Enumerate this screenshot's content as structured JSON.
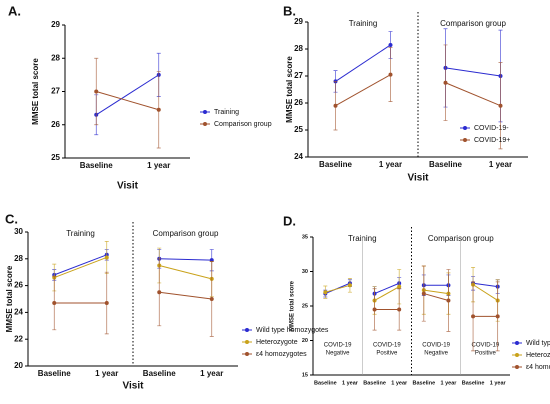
{
  "chart_data": [
    {
      "type": "line",
      "title": "A.",
      "ylabel": "MMSE total score",
      "xlabel": "Visit",
      "categories": [
        "Baseline",
        "1 year"
      ],
      "ylim": [
        25,
        29
      ],
      "yticks": [
        25,
        26,
        27,
        28,
        29
      ],
      "series": [
        {
          "name": "Training",
          "color": "#2b2bd0",
          "values": [
            26.3,
            27.5
          ],
          "errors": [
            0.6,
            0.65
          ]
        },
        {
          "name": "Comparison group",
          "color": "#a0522d",
          "values": [
            27.0,
            26.45
          ],
          "errors": [
            1.0,
            1.15
          ]
        }
      ]
    },
    {
      "type": "line",
      "title": "B.",
      "ylabel": "MMSE total score",
      "xlabel": "Visit",
      "groups": [
        "Training",
        "Comparison group"
      ],
      "categories": [
        "Baseline",
        "1 year",
        "Baseline",
        "1 year"
      ],
      "ylim": [
        24,
        29
      ],
      "yticks": [
        24,
        25,
        26,
        27,
        28,
        29
      ],
      "series": [
        {
          "name": "COVID-19-",
          "color": "#2b2bd0",
          "values": [
            26.8,
            28.15,
            27.3,
            27.0
          ],
          "errors": [
            0.4,
            0.5,
            1.45,
            1.7
          ]
        },
        {
          "name": "COVID-19+",
          "color": "#a0522d",
          "values": [
            25.9,
            27.05,
            26.75,
            25.9
          ],
          "errors": [
            0.9,
            1.0,
            1.4,
            1.6
          ]
        }
      ]
    },
    {
      "type": "line",
      "title": "C.",
      "ylabel": "MMSE total score",
      "xlabel": "Visit",
      "groups": [
        "Training",
        "Comparison group"
      ],
      "categories": [
        "Baseline",
        "1 year",
        "Baseline",
        "1 year"
      ],
      "ylim": [
        20,
        30
      ],
      "yticks": [
        20,
        22,
        24,
        26,
        28,
        30
      ],
      "series": [
        {
          "name": "Wild type homozygotes",
          "color": "#2b2bd0",
          "values": [
            26.8,
            28.3,
            28.0,
            27.9
          ],
          "errors": [
            0.4,
            0.4,
            0.7,
            0.8
          ]
        },
        {
          "name": "Heterozygote",
          "color": "#c9a21a",
          "values": [
            26.6,
            28.1,
            27.5,
            26.5
          ],
          "errors": [
            1.0,
            1.2,
            1.3,
            1.3
          ]
        },
        {
          "name": "ε4 homozygotes",
          "color": "#a0522d",
          "values": [
            24.7,
            24.7,
            25.5,
            25.0
          ],
          "errors": [
            2.0,
            2.3,
            2.5,
            2.8
          ]
        }
      ]
    },
    {
      "type": "line",
      "title": "D.",
      "ylabel": "MMSE total score",
      "groups": [
        "Training",
        "Comparison group"
      ],
      "subgroups": [
        [
          "COVID-19",
          "Negative"
        ],
        [
          "COVID-19",
          "Positive"
        ],
        [
          "COVID-19",
          "Negative"
        ],
        [
          "COVID-19",
          "Positive"
        ]
      ],
      "categories": [
        "Baseline",
        "1 year",
        "Baseline",
        "1 year",
        "Baseline",
        "1 year",
        "Baseline",
        "1 year"
      ],
      "ylim": [
        15,
        35
      ],
      "yticks": [
        15,
        20,
        25,
        30,
        35
      ],
      "series": [
        {
          "name": "Wild type homozygotes",
          "color": "#2b2bd0",
          "values": [
            26.8,
            28.3,
            26.8,
            28.3,
            28.0,
            28.0,
            28.3,
            27.8
          ],
          "errors": [
            0.5,
            0.5,
            1.0,
            0.8,
            1.5,
            1.5,
            1.0,
            1.0
          ]
        },
        {
          "name": "Heterozygote",
          "color": "#c9a21a",
          "values": [
            27.0,
            28.0,
            25.8,
            27.8,
            27.3,
            26.8,
            28.1,
            25.8
          ],
          "errors": [
            0.9,
            1.0,
            2.0,
            2.5,
            3.5,
            3.0,
            2.5,
            3.0
          ]
        },
        {
          "name": "ε4 homozygotes",
          "color": "#a0522d",
          "values": [
            null,
            null,
            24.5,
            24.5,
            26.8,
            25.8,
            23.5,
            23.5
          ],
          "errors": [
            null,
            null,
            3.0,
            3.0,
            4.0,
            4.5,
            5.0,
            5.0
          ]
        }
      ]
    }
  ]
}
